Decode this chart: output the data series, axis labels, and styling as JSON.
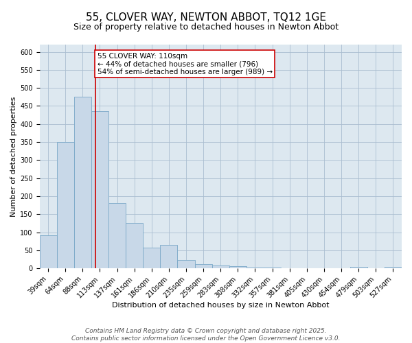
{
  "title": "55, CLOVER WAY, NEWTON ABBOT, TQ12 1GE",
  "subtitle": "Size of property relative to detached houses in Newton Abbot",
  "xlabel": "Distribution of detached houses by size in Newton Abbot",
  "ylabel": "Number of detached properties",
  "categories": [
    "39sqm",
    "64sqm",
    "88sqm",
    "113sqm",
    "137sqm",
    "161sqm",
    "186sqm",
    "210sqm",
    "235sqm",
    "259sqm",
    "283sqm",
    "308sqm",
    "332sqm",
    "357sqm",
    "381sqm",
    "405sqm",
    "430sqm",
    "454sqm",
    "479sqm",
    "503sqm",
    "527sqm"
  ],
  "values": [
    92,
    350,
    475,
    435,
    180,
    125,
    57,
    65,
    23,
    12,
    8,
    6,
    2,
    2,
    1,
    1,
    0,
    0,
    4,
    0,
    4
  ],
  "bar_color": "#c8d8e8",
  "bar_edge_color": "#7aa8c8",
  "grid_color": "#aabdd0",
  "background_color": "#dde8f0",
  "property_line_x": 2.75,
  "annotation_text": "55 CLOVER WAY: 110sqm\n← 44% of detached houses are smaller (796)\n54% of semi-detached houses are larger (989) →",
  "annotation_box_color": "#ffffff",
  "annotation_box_edge": "#cc0000",
  "annotation_text_color": "#000000",
  "vline_color": "#cc0000",
  "ylim": [
    0,
    620
  ],
  "yticks": [
    0,
    50,
    100,
    150,
    200,
    250,
    300,
    350,
    400,
    450,
    500,
    550,
    600
  ],
  "footer": "Contains HM Land Registry data © Crown copyright and database right 2025.\nContains public sector information licensed under the Open Government Licence v3.0.",
  "title_fontsize": 11,
  "subtitle_fontsize": 9,
  "axis_label_fontsize": 8,
  "tick_fontsize": 7,
  "annotation_fontsize": 7.5,
  "footer_fontsize": 6.5
}
